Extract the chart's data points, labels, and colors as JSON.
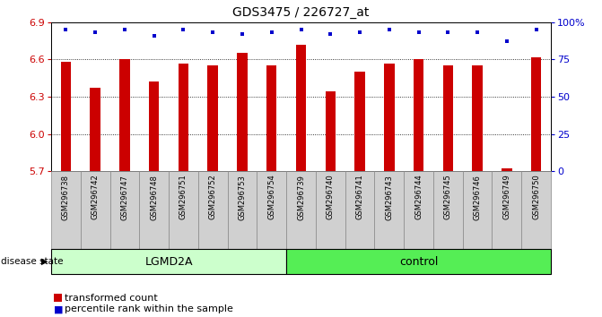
{
  "title": "GDS3475 / 226727_at",
  "samples": [
    "GSM296738",
    "GSM296742",
    "GSM296747",
    "GSM296748",
    "GSM296751",
    "GSM296752",
    "GSM296753",
    "GSM296754",
    "GSM296739",
    "GSM296740",
    "GSM296741",
    "GSM296743",
    "GSM296744",
    "GSM296745",
    "GSM296746",
    "GSM296749",
    "GSM296750"
  ],
  "bar_values": [
    6.58,
    6.37,
    6.6,
    6.42,
    6.57,
    6.55,
    6.65,
    6.55,
    6.72,
    6.34,
    6.5,
    6.57,
    6.6,
    6.55,
    6.55,
    5.72,
    6.62
  ],
  "percentile_values": [
    95,
    93,
    95,
    91,
    95,
    93,
    92,
    93,
    95,
    92,
    93,
    95,
    93,
    93,
    93,
    87,
    95
  ],
  "ylim_left": [
    5.7,
    6.9
  ],
  "ylim_right": [
    0,
    100
  ],
  "yticks_left": [
    5.7,
    6.0,
    6.3,
    6.6,
    6.9
  ],
  "yticks_right": [
    0,
    25,
    50,
    75,
    100
  ],
  "ytick_labels_right": [
    "0",
    "25",
    "50",
    "75",
    "100%"
  ],
  "bar_color": "#cc0000",
  "dot_color": "#0000cc",
  "group1_label": "LGMD2A",
  "group1_count": 8,
  "group2_label": "control",
  "group2_count": 9,
  "group1_color": "#ccffcc",
  "group2_color": "#55ee55",
  "disease_state_label": "disease state",
  "legend_bar_label": "transformed count",
  "legend_dot_label": "percentile rank within the sample",
  "bar_width": 0.35,
  "sample_box_color": "#d0d0d0",
  "dot_size": 12
}
